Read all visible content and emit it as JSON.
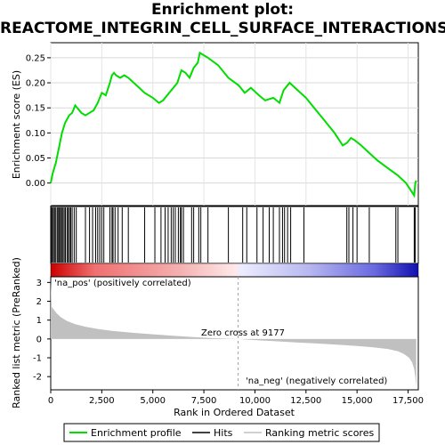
{
  "title_line1": "Enrichment plot:",
  "title_line2": "REACTOME_INTEGRIN_CELL_SURFACE_INTERACTIONS",
  "colors": {
    "enrichment": "#00dd00",
    "hits": "#000000",
    "metric_fill": "#c0c0c0",
    "pos_label": "#cc0000",
    "neg_label": "#0000cc",
    "zero_line": "#a0a0a0"
  },
  "chart_data": [
    {
      "type": "line",
      "ylabel": "Enrichment score (ES)",
      "xlim": [
        0,
        18000
      ],
      "ylim": [
        -0.045,
        0.28
      ],
      "yticks": [
        0.0,
        0.05,
        0.1,
        0.15,
        0.2,
        0.25
      ],
      "ytick_labels": [
        "0.00",
        "0.05",
        "0.10",
        "0.15",
        "0.20",
        "0.25"
      ],
      "grid": true,
      "series": [
        {
          "name": "Enrichment profile",
          "x": [
            0,
            100,
            250,
            400,
            550,
            700,
            900,
            1050,
            1200,
            1300,
            1500,
            1700,
            1900,
            2100,
            2300,
            2500,
            2700,
            2900,
            3000,
            3100,
            3200,
            3400,
            3600,
            3800,
            4200,
            4600,
            5000,
            5300,
            5500,
            5700,
            6000,
            6200,
            6400,
            6600,
            6800,
            7000,
            7200,
            7300,
            7500,
            7700,
            8200,
            8700,
            9200,
            9500,
            9800,
            10200,
            10500,
            10900,
            11200,
            11400,
            11700,
            12100,
            12500,
            12900,
            13400,
            13900,
            14300,
            14500,
            14700,
            14900,
            15200,
            15600,
            16000,
            16500,
            17000,
            17400,
            17800,
            17850,
            17900
          ],
          "y": [
            0.0,
            0.02,
            0.04,
            0.07,
            0.1,
            0.12,
            0.135,
            0.14,
            0.155,
            0.15,
            0.14,
            0.135,
            0.14,
            0.145,
            0.16,
            0.18,
            0.175,
            0.2,
            0.215,
            0.22,
            0.215,
            0.21,
            0.215,
            0.21,
            0.195,
            0.18,
            0.17,
            0.16,
            0.165,
            0.175,
            0.19,
            0.2,
            0.225,
            0.22,
            0.21,
            0.23,
            0.24,
            0.26,
            0.255,
            0.25,
            0.235,
            0.21,
            0.195,
            0.18,
            0.19,
            0.175,
            0.165,
            0.17,
            0.16,
            0.185,
            0.2,
            0.185,
            0.17,
            0.15,
            0.125,
            0.1,
            0.075,
            0.08,
            0.09,
            0.085,
            0.075,
            0.06,
            0.045,
            0.03,
            0.015,
            0.0,
            -0.025,
            0.0,
            0.005
          ]
        }
      ]
    },
    {
      "type": "scatter",
      "series": [
        {
          "name": "Hits",
          "x": [
            30,
            80,
            130,
            190,
            250,
            320,
            380,
            430,
            480,
            540,
            600,
            660,
            720,
            800,
            860,
            920,
            980,
            1050,
            1150,
            1250,
            1700,
            1900,
            2050,
            2200,
            2300,
            2400,
            2500,
            2600,
            2900,
            3000,
            3050,
            3150,
            3300,
            3500,
            3800,
            4600,
            5100,
            5400,
            5600,
            5750,
            5900,
            6000,
            6100,
            6250,
            6350,
            6400,
            6500,
            6900,
            7000,
            7250,
            7350,
            7700,
            8700,
            9400,
            9600,
            10100,
            10400,
            10700,
            10900,
            11200,
            11350,
            11450,
            11600,
            11750,
            12400,
            14500,
            14600,
            14800,
            15000,
            15600,
            16900,
            17000,
            17800,
            17850
          ]
        }
      ]
    },
    {
      "type": "area",
      "ylabel": "Ranked list metric (PreRanked)",
      "xlabel": "Rank in Ordered Dataset",
      "xlim": [
        0,
        18000
      ],
      "ylim": [
        -2.7,
        3.3
      ],
      "yticks": [
        -2,
        -1,
        0,
        1,
        2,
        3
      ],
      "ytick_labels": [
        "-2",
        "-1",
        "0",
        "1",
        "2",
        "3"
      ],
      "xticks": [
        0,
        2500,
        5000,
        7500,
        10000,
        12500,
        15000,
        17500
      ],
      "xtick_labels": [
        "0",
        "2,500",
        "5,000",
        "7,500",
        "10,000",
        "12,500",
        "15,000",
        "17,500"
      ],
      "zero_cross": 9177,
      "zero_cross_label": "Zero cross at 9177",
      "pos_label": "'na_pos' (positively correlated)",
      "neg_label": "'na_neg' (negatively correlated)",
      "series": [
        {
          "name": "Ranking metric scores",
          "x": [
            0,
            50,
            150,
            300,
            500,
            800,
            1200,
            1700,
            2300,
            3000,
            4000,
            5000,
            6000,
            7000,
            8000,
            9177,
            10000,
            11000,
            12000,
            13000,
            14000,
            15000,
            15800,
            16500,
            17000,
            17300,
            17550,
            17700,
            17800,
            17850,
            17900
          ],
          "y": [
            3.1,
            1.7,
            1.55,
            1.35,
            1.15,
            0.95,
            0.78,
            0.65,
            0.53,
            0.43,
            0.33,
            0.25,
            0.17,
            0.1,
            0.04,
            0.0,
            -0.06,
            -0.12,
            -0.18,
            -0.24,
            -0.3,
            -0.37,
            -0.44,
            -0.53,
            -0.65,
            -0.8,
            -1.0,
            -1.25,
            -1.6,
            -2.0,
            -2.55
          ]
        }
      ]
    }
  ],
  "legend": [
    {
      "label": "Enrichment profile"
    },
    {
      "label": "Hits"
    },
    {
      "label": "Ranking metric scores"
    }
  ]
}
